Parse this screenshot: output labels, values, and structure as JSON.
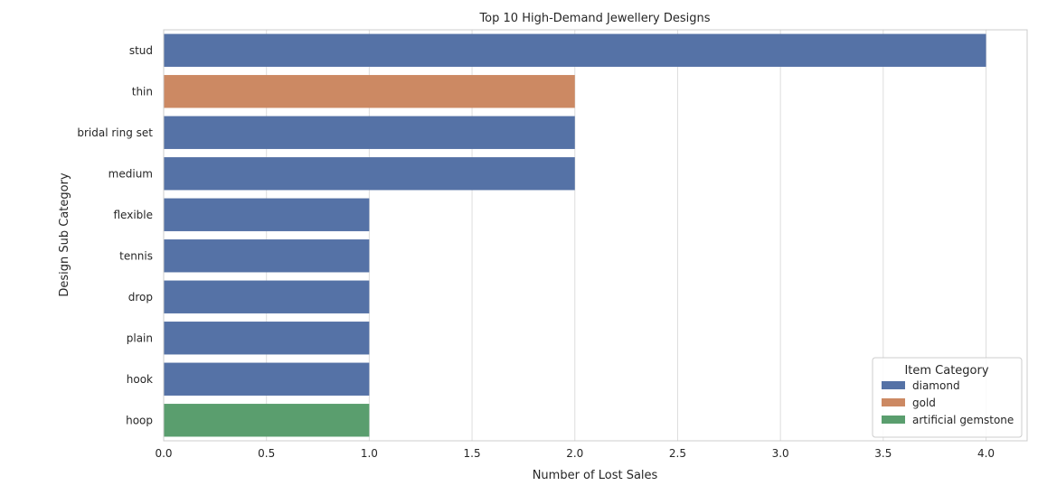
{
  "chart_data": {
    "type": "bar",
    "orientation": "horizontal",
    "title": "Top 10 High-Demand Jewellery Designs",
    "xlabel": "Number of Lost Sales",
    "ylabel": "Design Sub Category",
    "xlim": [
      0,
      4.2
    ],
    "xticks": [
      "0.0",
      "0.5",
      "1.0",
      "1.5",
      "2.0",
      "2.5",
      "3.0",
      "3.5",
      "4.0"
    ],
    "xtick_values": [
      0,
      0.5,
      1,
      1.5,
      2,
      2.5,
      3,
      3.5,
      4
    ],
    "grid": true,
    "legend": {
      "title": "Item Category",
      "placement": "bottom-right",
      "entries": [
        {
          "name": "diamond",
          "color": "#5572a6"
        },
        {
          "name": "gold",
          "color": "#cc8963"
        },
        {
          "name": "artificial gemstone",
          "color": "#5a9e6e"
        }
      ]
    },
    "categories": [
      "stud",
      "thin",
      "bridal ring set",
      "medium",
      "flexible",
      "tennis",
      "drop",
      "plain",
      "hook",
      "hoop"
    ],
    "values": [
      4,
      2,
      2,
      2,
      1,
      1,
      1,
      1,
      1,
      1
    ],
    "bar_series": [
      "diamond",
      "gold",
      "diamond",
      "diamond",
      "diamond",
      "diamond",
      "diamond",
      "diamond",
      "diamond",
      "artificial gemstone"
    ]
  }
}
